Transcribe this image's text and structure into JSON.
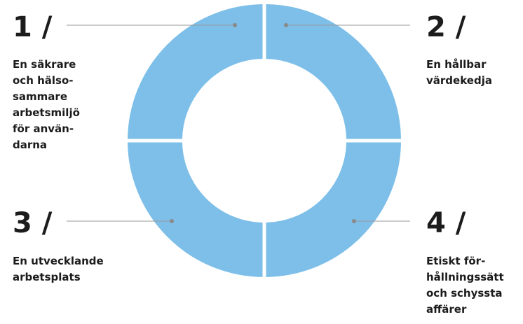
{
  "items": [
    {
      "number": "1 /",
      "lines": [
        "En säkrare",
        "och hälso-",
        "sammare",
        "arbetsmiljö",
        "för använ-",
        "darna"
      ]
    },
    {
      "number": "2 /",
      "lines": [
        "En hållbar",
        "värdekedja"
      ]
    },
    {
      "number": "3 /",
      "lines": [
        "En utvecklande",
        "arbetsplats"
      ]
    },
    {
      "number": "4 /",
      "lines": [
        "Etiskt för-",
        "hållningssätt",
        "och schyssta",
        "affärer"
      ]
    }
  ]
}
